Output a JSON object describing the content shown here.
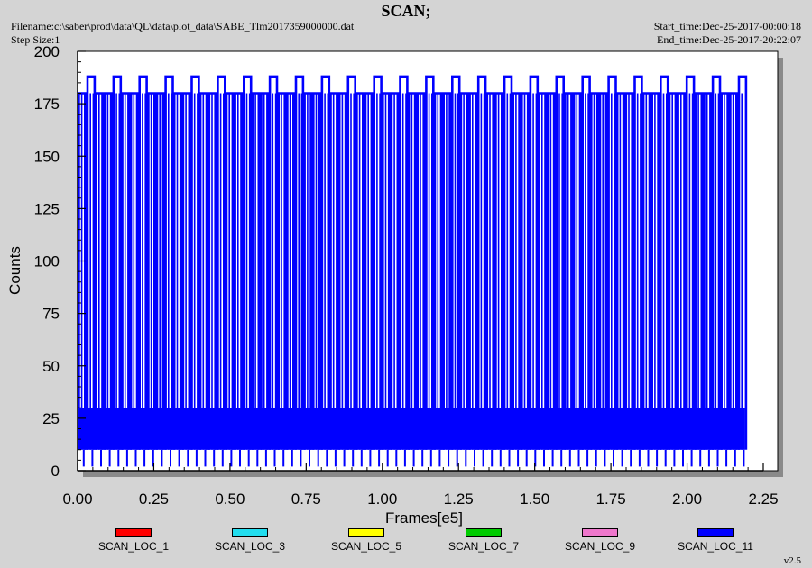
{
  "header": {
    "title": "SCAN;",
    "filename": "Filename:c:\\saber\\prod\\data\\QL\\data\\plot_data\\SABE_Tlm2017359000000.dat",
    "step_size": "Step Size:1",
    "start_time": "Start_time:Dec-25-2017-00:00:18",
    "end_time": "End_time:Dec-25-2017-20:22:07"
  },
  "version": "v2.5",
  "colors": {
    "background": "#d4d4d4",
    "plot_area": "#ffffff"
  },
  "chart_data": {
    "type": "line",
    "title": "SCAN;",
    "xlabel": "Frames[e5]",
    "ylabel": "Counts",
    "xlim": [
      0,
      2.25
    ],
    "ylim": [
      0,
      200
    ],
    "x_ticks": [
      "0.00",
      "0.25",
      "0.50",
      "0.75",
      "1.00",
      "1.25",
      "1.50",
      "1.75",
      "2.00",
      "2.25"
    ],
    "y_ticks": [
      "0",
      "25",
      "50",
      "75",
      "100",
      "125",
      "150",
      "175",
      "200"
    ],
    "grid": false,
    "legend_position": "bottom",
    "series": [
      {
        "name": "SCAN_LOC_1",
        "color": "#ff0000",
        "values": []
      },
      {
        "name": "SCAN_LOC_3",
        "color": "#22ddee",
        "values": []
      },
      {
        "name": "SCAN_LOC_5",
        "color": "#ffff00",
        "values": []
      },
      {
        "name": "SCAN_LOC_7",
        "color": "#00cc00",
        "values": []
      },
      {
        "name": "SCAN_LOC_9",
        "color": "#ee77cc",
        "values": []
      },
      {
        "name": "SCAN_LOC_11",
        "color": "#0000ff",
        "data_extent_x": [
          0,
          2.19
        ],
        "baseline_band": [
          10,
          30
        ],
        "low_spike": 2,
        "scan_peaks": [
          180,
          188
        ],
        "approx_scan_cycle_period": 0.0285
      }
    ]
  }
}
